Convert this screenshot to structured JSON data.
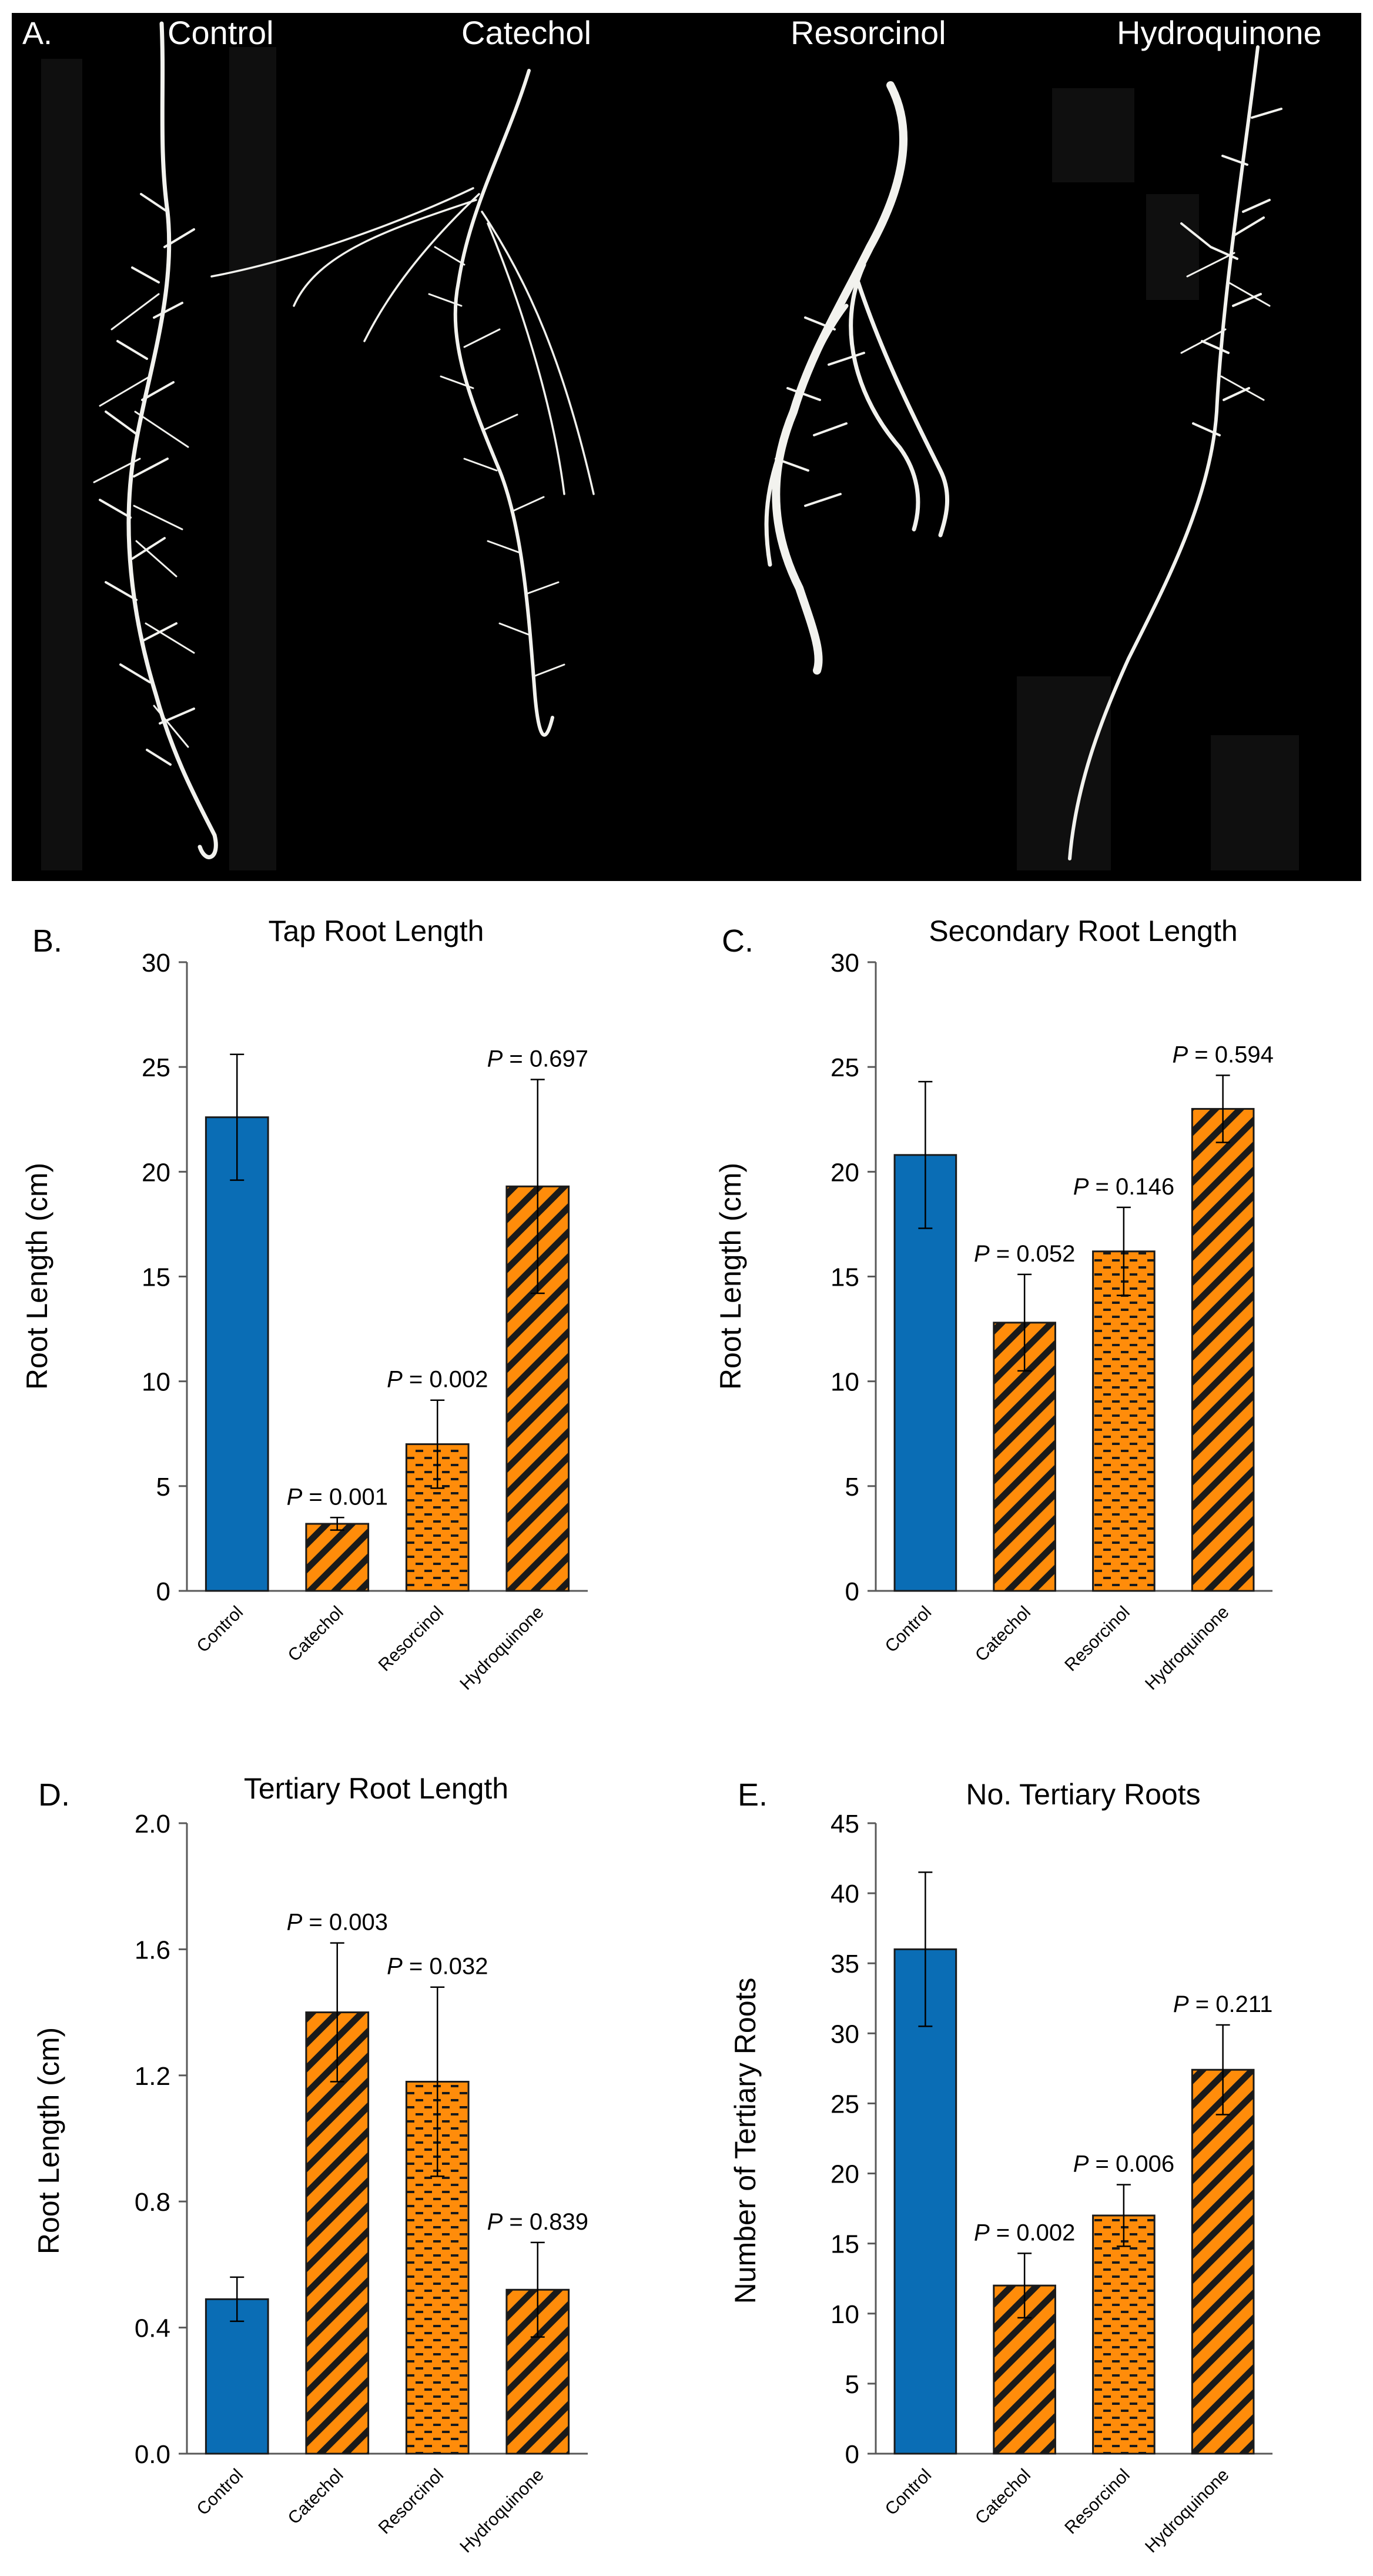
{
  "panel_a": {
    "label": "A.",
    "captions": [
      "Control",
      "Catechol",
      "Resorcinol",
      "Hydroquinone"
    ]
  },
  "colors": {
    "control": "#0a6db5",
    "treatment": "#ff8c0a",
    "hatch": "#1a1a1a",
    "photo_bg": "#000000",
    "root": "#f2f2ee"
  },
  "chart_data": [
    {
      "panel": "B.",
      "type": "bar",
      "title": "Tap Root Length",
      "xlabel": "",
      "ylabel": "Root Length (cm)",
      "categories": [
        "Control",
        "Catechol",
        "Resorcinol",
        "Hydroquinone"
      ],
      "values": [
        22.6,
        3.2,
        7.0,
        19.3
      ],
      "errors": [
        3.0,
        0.3,
        2.1,
        5.1
      ],
      "annotations": [
        "",
        "P = 0.001",
        "P = 0.002",
        "P = 0.697"
      ],
      "ylim": [
        0,
        30
      ],
      "yticks": [
        "0",
        "5",
        "10",
        "15",
        "20",
        "25",
        "30"
      ],
      "grid": false
    },
    {
      "panel": "C.",
      "type": "bar",
      "title": "Secondary Root Length",
      "xlabel": "",
      "ylabel": "Root Length (cm)",
      "categories": [
        "Control",
        "Catechol",
        "Resorcinol",
        "Hydroquinone"
      ],
      "values": [
        20.8,
        12.8,
        16.2,
        23.0
      ],
      "errors": [
        3.5,
        2.3,
        2.1,
        1.6
      ],
      "annotations": [
        "",
        "P = 0.052",
        "P = 0.146",
        "P = 0.594"
      ],
      "ylim": [
        0,
        30
      ],
      "yticks": [
        "0",
        "5",
        "10",
        "15",
        "20",
        "25",
        "30"
      ],
      "grid": false
    },
    {
      "panel": "D.",
      "type": "bar",
      "title": "Tertiary Root Length",
      "xlabel": "",
      "ylabel": "Root Length (cm)",
      "categories": [
        "Control",
        "Catechol",
        "Resorcinol",
        "Hydroquinone"
      ],
      "values": [
        0.49,
        1.4,
        1.18,
        0.52
      ],
      "errors": [
        0.07,
        0.22,
        0.3,
        0.15
      ],
      "annotations": [
        "",
        "P = 0.003",
        "P = 0.032",
        "P = 0.839"
      ],
      "ylim": [
        0,
        2.0
      ],
      "yticks": [
        "0.0",
        "0.4",
        "0.8",
        "1.2",
        "1.6",
        "2.0"
      ],
      "grid": false
    },
    {
      "panel": "E.",
      "type": "bar",
      "title": "No. Tertiary Roots",
      "xlabel": "",
      "ylabel": "Number of Tertiary Roots",
      "categories": [
        "Control",
        "Catechol",
        "Resorcinol",
        "Hydroquinone"
      ],
      "values": [
        36.0,
        12.0,
        17.0,
        27.4
      ],
      "errors": [
        5.5,
        2.3,
        2.2,
        3.2
      ],
      "annotations": [
        "",
        "P = 0.002",
        "P = 0.006",
        "P = 0.211"
      ],
      "ylim": [
        0,
        45
      ],
      "yticks": [
        "0",
        "5",
        "10",
        "15",
        "20",
        "25",
        "30",
        "35",
        "40",
        "45"
      ],
      "grid": false
    }
  ]
}
